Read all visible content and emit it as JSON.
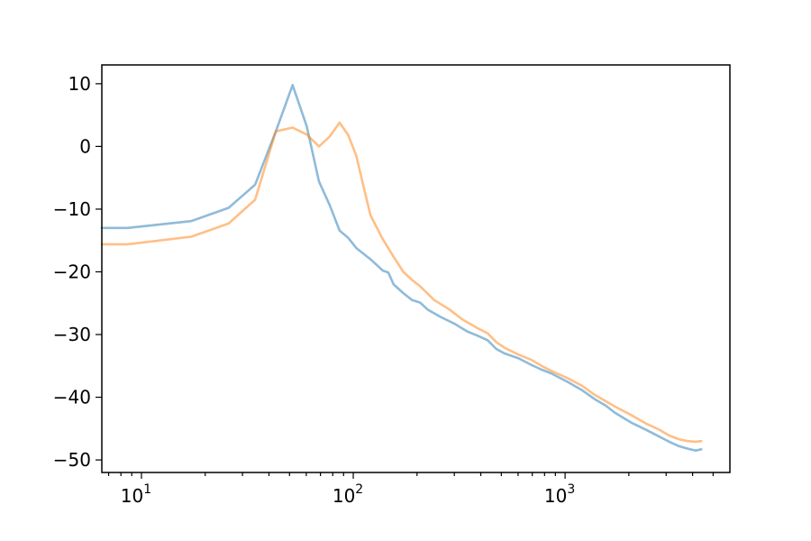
{
  "chart_data": {
    "type": "line",
    "title": "",
    "xlabel": "",
    "ylabel": "",
    "xscale": "log",
    "xlim": [
      6.5,
      6000
    ],
    "ylim": [
      -52,
      13
    ],
    "grid": false,
    "x_ticks": [
      {
        "value": 10,
        "base": "10",
        "exp": "1"
      },
      {
        "value": 100,
        "base": "10",
        "exp": "2"
      },
      {
        "value": 1000,
        "base": "10",
        "exp": "3"
      }
    ],
    "y_ticks": [
      {
        "value": 10,
        "label": "10"
      },
      {
        "value": 0,
        "label": "0"
      },
      {
        "value": -10,
        "label": "−10"
      },
      {
        "value": -20,
        "label": "−20"
      },
      {
        "value": -30,
        "label": "−30"
      },
      {
        "value": -40,
        "label": "−40"
      },
      {
        "value": -50,
        "label": "−50"
      }
    ],
    "series": [
      {
        "color": "#1f77b4",
        "opacity": 0.5,
        "points": [
          [
            6.5,
            -13.0
          ],
          [
            8.6,
            -13.0
          ],
          [
            17.2,
            -11.9
          ],
          [
            25.8,
            -9.8
          ],
          [
            34.4,
            -6.1
          ],
          [
            43.1,
            2.4
          ],
          [
            51.7,
            9.8
          ],
          [
            60.3,
            3.2
          ],
          [
            68.9,
            -5.6
          ],
          [
            77.5,
            -9.4
          ],
          [
            86.1,
            -13.4
          ],
          [
            94.7,
            -14.6
          ],
          [
            103.4,
            -16.2
          ],
          [
            120.6,
            -18.0
          ],
          [
            137.8,
            -19.8
          ],
          [
            146.4,
            -20.1
          ],
          [
            155.0,
            -22.0
          ],
          [
            172.3,
            -23.4
          ],
          [
            189.5,
            -24.5
          ],
          [
            206.7,
            -24.9
          ],
          [
            224.0,
            -26.0
          ],
          [
            258.4,
            -27.2
          ],
          [
            301.5,
            -28.3
          ],
          [
            344.5,
            -29.5
          ],
          [
            387.6,
            -30.2
          ],
          [
            430.7,
            -30.9
          ],
          [
            473.7,
            -32.3
          ],
          [
            516.8,
            -33.0
          ],
          [
            602.9,
            -33.8
          ],
          [
            689.1,
            -34.8
          ],
          [
            775.2,
            -35.6
          ],
          [
            861.3,
            -36.2
          ],
          [
            1033.6,
            -37.6
          ],
          [
            1205.9,
            -38.9
          ],
          [
            1378.1,
            -40.3
          ],
          [
            1550.4,
            -41.3
          ],
          [
            1722.7,
            -42.5
          ],
          [
            2067.2,
            -44.1
          ],
          [
            2411.7,
            -45.2
          ],
          [
            2756.2,
            -46.2
          ],
          [
            3100.8,
            -47.1
          ],
          [
            3445.3,
            -47.8
          ],
          [
            3789.8,
            -48.2
          ],
          [
            4134.4,
            -48.5
          ],
          [
            4393.0,
            -48.3
          ]
        ]
      },
      {
        "color": "#ff7f0e",
        "opacity": 0.5,
        "points": [
          [
            6.5,
            -15.6
          ],
          [
            8.6,
            -15.6
          ],
          [
            17.2,
            -14.4
          ],
          [
            25.8,
            -12.3
          ],
          [
            34.4,
            -8.5
          ],
          [
            43.1,
            2.4
          ],
          [
            51.7,
            3.0
          ],
          [
            60.3,
            1.9
          ],
          [
            68.9,
            0.0
          ],
          [
            77.5,
            1.6
          ],
          [
            86.1,
            3.8
          ],
          [
            94.7,
            1.8
          ],
          [
            103.4,
            -1.5
          ],
          [
            112.0,
            -6.5
          ],
          [
            120.6,
            -11.0
          ],
          [
            137.8,
            -14.8
          ],
          [
            155.0,
            -17.6
          ],
          [
            172.3,
            -20.0
          ],
          [
            189.5,
            -21.3
          ],
          [
            206.7,
            -22.3
          ],
          [
            241.2,
            -24.5
          ],
          [
            284.2,
            -26.0
          ],
          [
            327.3,
            -27.6
          ],
          [
            387.6,
            -29.0
          ],
          [
            430.7,
            -29.8
          ],
          [
            473.7,
            -31.2
          ],
          [
            516.8,
            -32.1
          ],
          [
            602.9,
            -33.2
          ],
          [
            689.1,
            -34.0
          ],
          [
            775.2,
            -35.0
          ],
          [
            861.3,
            -35.8
          ],
          [
            1033.6,
            -37.0
          ],
          [
            1205.9,
            -38.2
          ],
          [
            1378.1,
            -39.6
          ],
          [
            1550.4,
            -40.6
          ],
          [
            1722.7,
            -41.5
          ],
          [
            2067.2,
            -42.9
          ],
          [
            2411.7,
            -44.2
          ],
          [
            2756.2,
            -45.1
          ],
          [
            3100.8,
            -46.1
          ],
          [
            3445.3,
            -46.7
          ],
          [
            3789.8,
            -47.0
          ],
          [
            4134.4,
            -47.1
          ],
          [
            4393.0,
            -47.0
          ]
        ]
      }
    ]
  }
}
